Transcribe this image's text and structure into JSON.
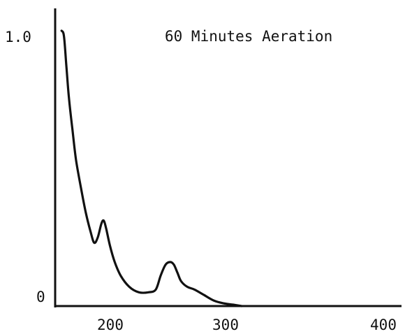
{
  "chart_data": {
    "type": "line",
    "title": "60 Minutes Aeration",
    "xlabel": "",
    "ylabel": "",
    "xlim": [
      165,
      410
    ],
    "ylim": [
      0,
      1.0
    ],
    "x_ticks": [
      200,
      300,
      400
    ],
    "y_ticks": [
      0,
      1.0
    ],
    "y_tick_labels": [
      "0",
      "1.0"
    ],
    "grid": false,
    "series": [
      {
        "x": [
          166,
          168,
          170,
          172,
          175,
          178,
          182,
          186,
          190,
          193,
          196,
          199,
          201,
          203,
          206,
          210,
          215,
          222,
          230,
          238,
          244,
          248,
          252,
          256,
          259,
          262,
          265,
          270,
          276,
          284,
          292,
          300,
          308,
          315
        ],
        "y": [
          1.0,
          0.98,
          0.87,
          0.76,
          0.64,
          0.53,
          0.43,
          0.34,
          0.27,
          0.23,
          0.25,
          0.3,
          0.31,
          0.28,
          0.22,
          0.16,
          0.11,
          0.07,
          0.05,
          0.05,
          0.06,
          0.11,
          0.15,
          0.16,
          0.15,
          0.12,
          0.09,
          0.07,
          0.06,
          0.04,
          0.02,
          0.01,
          0.005,
          0.0
        ],
        "color": "#111111"
      }
    ]
  }
}
